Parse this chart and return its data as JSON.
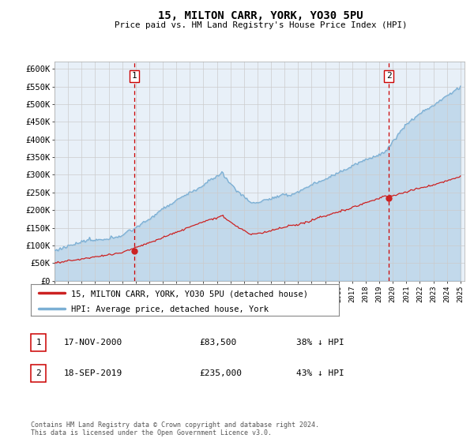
{
  "title": "15, MILTON CARR, YORK, YO30 5PU",
  "subtitle": "Price paid vs. HM Land Registry's House Price Index (HPI)",
  "ylabel_ticks": [
    "£0",
    "£50K",
    "£100K",
    "£150K",
    "£200K",
    "£250K",
    "£300K",
    "£350K",
    "£400K",
    "£450K",
    "£500K",
    "£550K",
    "£600K"
  ],
  "ytick_values": [
    0,
    50000,
    100000,
    150000,
    200000,
    250000,
    300000,
    350000,
    400000,
    450000,
    500000,
    550000,
    600000
  ],
  "hpi_color": "#7bafd4",
  "hpi_fill": "#ddeeff",
  "price_color": "#cc2222",
  "vline_color": "#cc0000",
  "transaction1": {
    "date_label": "17-NOV-2000",
    "price": 83500,
    "pct": "38% ↓ HPI",
    "x": 2000.88
  },
  "transaction2": {
    "date_label": "18-SEP-2019",
    "price": 235000,
    "pct": "43% ↓ HPI",
    "x": 2019.71
  },
  "legend_line1": "15, MILTON CARR, YORK, YO30 5PU (detached house)",
  "legend_line2": "HPI: Average price, detached house, York",
  "footer": "Contains HM Land Registry data © Crown copyright and database right 2024.\nThis data is licensed under the Open Government Licence v3.0.",
  "table_rows": [
    {
      "num": "1",
      "date": "17-NOV-2000",
      "price": "£83,500",
      "pct": "38% ↓ HPI"
    },
    {
      "num": "2",
      "date": "18-SEP-2019",
      "price": "£235,000",
      "pct": "43% ↓ HPI"
    }
  ],
  "background_color": "#ffffff",
  "grid_color": "#cccccc",
  "plot_bg_color": "#e8f0f8"
}
